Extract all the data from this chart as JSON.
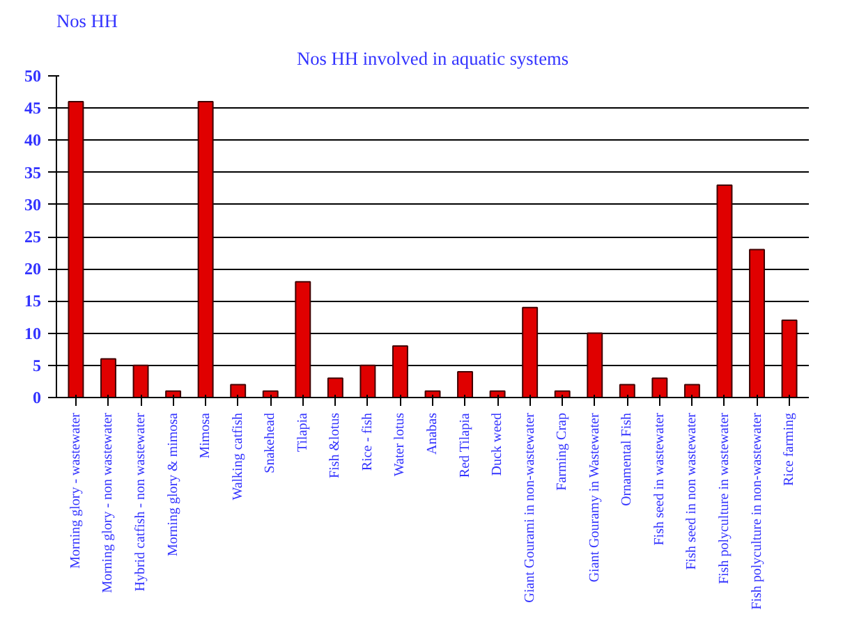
{
  "chart_data": {
    "type": "bar",
    "title": "Nos HH involved in aquatic systems",
    "ylabel": "Nos HH",
    "categories": [
      "Morning glory - wastewater",
      "Morning glory - non wastewater",
      "Hybrid catfish - non wastewater",
      "Morning glory & mimosa",
      "Mimosa",
      "Walking catfish",
      "Snakehead",
      "Tilapia",
      "Fish &lotus",
      "Rice - fish",
      "Water lotus",
      "Anabas",
      "Red Tilapia",
      "Duck weed",
      "Giant Gourami in non-wastewater",
      "Farming Crap",
      "Giant Gouramy in Wastewater",
      "Ornamental Fish",
      "Fish seed in wastewater",
      "Fish seed in non wastewater",
      "Fish polyculture in wastewater",
      "Fish polyculture in non-wastewater",
      "Rice farming"
    ],
    "values": [
      46,
      6,
      5,
      1,
      46,
      2,
      1,
      18,
      3,
      5,
      8,
      1,
      4,
      1,
      14,
      1,
      10,
      2,
      3,
      2,
      33,
      23,
      12
    ],
    "color": "#e00000",
    "ylim": [
      0,
      50
    ],
    "yticks": [
      0,
      5,
      10,
      15,
      20,
      25,
      30,
      35,
      40,
      45,
      50
    ],
    "grid": "y"
  }
}
